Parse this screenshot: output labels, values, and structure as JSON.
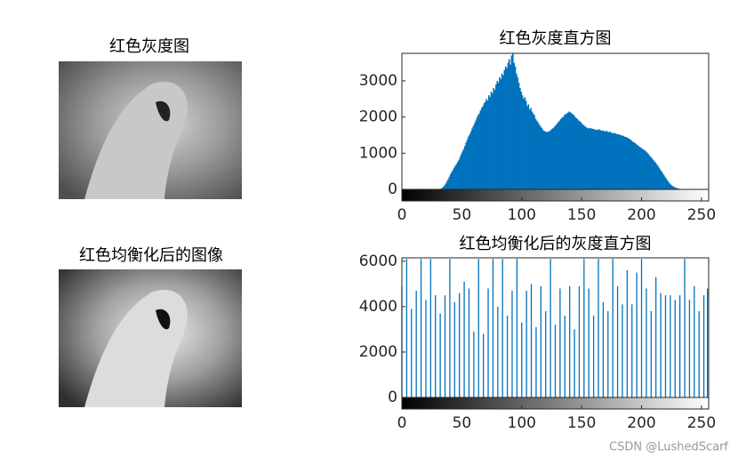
{
  "images": [
    {
      "title": "红色灰度图"
    },
    {
      "title": "红色均衡化后的图像"
    }
  ],
  "chart_data": [
    {
      "type": "histogram",
      "title": "红色灰度直方图",
      "color": "#0072bd",
      "xlim": [
        0,
        256
      ],
      "xticks": [
        0,
        50,
        100,
        150,
        200,
        250
      ],
      "ylim": [
        0,
        3760
      ],
      "yticks": [
        0,
        1000,
        2000,
        3000
      ],
      "x": [
        0,
        1,
        2,
        3,
        4,
        5,
        6,
        7,
        8,
        9,
        10,
        11,
        12,
        13,
        14,
        15,
        16,
        17,
        18,
        19,
        20,
        21,
        22,
        23,
        24,
        25,
        26,
        27,
        28,
        29,
        30,
        31,
        32,
        33,
        34,
        35,
        36,
        37,
        38,
        39,
        40,
        41,
        42,
        43,
        44,
        45,
        46,
        47,
        48,
        49,
        50,
        51,
        52,
        53,
        54,
        55,
        56,
        57,
        58,
        59,
        60,
        61,
        62,
        63,
        64,
        65,
        66,
        67,
        68,
        69,
        70,
        71,
        72,
        73,
        74,
        75,
        76,
        77,
        78,
        79,
        80,
        81,
        82,
        83,
        84,
        85,
        86,
        87,
        88,
        89,
        90,
        91,
        92,
        93,
        94,
        95,
        96,
        97,
        98,
        99,
        100,
        101,
        102,
        103,
        104,
        105,
        106,
        107,
        108,
        109,
        110,
        111,
        112,
        113,
        114,
        115,
        116,
        117,
        118,
        119,
        120,
        121,
        122,
        123,
        124,
        125,
        126,
        127,
        128,
        129,
        130,
        131,
        132,
        133,
        134,
        135,
        136,
        137,
        138,
        139,
        140,
        141,
        142,
        143,
        144,
        145,
        146,
        147,
        148,
        149,
        150,
        151,
        152,
        153,
        154,
        155,
        156,
        157,
        158,
        159,
        160,
        161,
        162,
        163,
        164,
        165,
        166,
        167,
        168,
        169,
        170,
        171,
        172,
        173,
        174,
        175,
        176,
        177,
        178,
        179,
        180,
        181,
        182,
        183,
        184,
        185,
        186,
        187,
        188,
        189,
        190,
        191,
        192,
        193,
        194,
        195,
        196,
        197,
        198,
        199,
        200,
        201,
        202,
        203,
        204,
        205,
        206,
        207,
        208,
        209,
        210,
        211,
        212,
        213,
        214,
        215,
        216,
        217,
        218,
        219,
        220,
        221,
        222,
        223,
        224,
        225,
        226,
        227,
        228,
        229,
        230,
        231,
        232,
        233,
        234,
        235,
        236,
        237,
        238,
        239,
        240,
        241,
        242,
        243,
        244,
        245,
        246,
        247,
        248,
        249,
        250,
        251,
        252,
        253,
        254,
        255
      ],
      "values": [
        0,
        0,
        0,
        0,
        0,
        0,
        0,
        0,
        0,
        0,
        0,
        0,
        0,
        0,
        0,
        0,
        0,
        0,
        0,
        0,
        0,
        0,
        0,
        0,
        0,
        0,
        0,
        0,
        0,
        0,
        5,
        10,
        20,
        40,
        70,
        110,
        160,
        220,
        280,
        350,
        420,
        480,
        540,
        600,
        650,
        700,
        760,
        820,
        900,
        980,
        1050,
        1120,
        1200,
        1300,
        1380,
        1460,
        1520,
        1600,
        1680,
        1750,
        1820,
        1900,
        1980,
        2050,
        2100,
        2180,
        2250,
        2300,
        2380,
        2420,
        2500,
        2450,
        2600,
        2550,
        2700,
        2650,
        2800,
        2750,
        2900,
        3000,
        2950,
        3100,
        3050,
        3200,
        3150,
        3300,
        3400,
        3350,
        3500,
        3600,
        3450,
        3700,
        3760,
        3500,
        3400,
        3200,
        3100,
        2950,
        2800,
        2700,
        2600,
        2500,
        2550,
        2450,
        2300,
        2350,
        2200,
        2250,
        2150,
        2100,
        2050,
        1950,
        1900,
        1850,
        1800,
        1750,
        1700,
        1650,
        1620,
        1600,
        1580,
        1600,
        1590,
        1620,
        1650,
        1680,
        1700,
        1740,
        1780,
        1820,
        1860,
        1900,
        1940,
        1980,
        2000,
        2050,
        2080,
        2100,
        2120,
        2150,
        2130,
        2100,
        2080,
        2050,
        2000,
        1970,
        1940,
        1900,
        1880,
        1850,
        1800,
        1780,
        1750,
        1720,
        1700,
        1680,
        1700,
        1690,
        1680,
        1670,
        1660,
        1650,
        1640,
        1650,
        1660,
        1640,
        1620,
        1630,
        1610,
        1600,
        1620,
        1590,
        1580,
        1600,
        1570,
        1560,
        1550,
        1560,
        1540,
        1520,
        1530,
        1510,
        1500,
        1490,
        1480,
        1460,
        1450,
        1440,
        1420,
        1400,
        1380,
        1350,
        1320,
        1300,
        1280,
        1250,
        1220,
        1200,
        1170,
        1150,
        1120,
        1100,
        1080,
        1050,
        1020,
        980,
        940,
        900,
        860,
        820,
        780,
        740,
        700,
        650,
        600,
        550,
        500,
        450,
        400,
        350,
        300,
        250,
        200,
        160,
        130,
        100,
        80,
        60,
        45,
        35,
        25,
        18,
        12,
        8,
        5,
        3,
        2,
        1,
        0,
        0,
        0,
        0,
        0,
        0,
        0,
        0,
        0,
        0,
        0,
        0,
        0,
        0,
        0,
        0,
        0,
        0
      ]
    },
    {
      "type": "stem",
      "title": "红色均衡化后的灰度直方图",
      "color": "#0072bd",
      "xlim": [
        0,
        256
      ],
      "xticks": [
        0,
        50,
        100,
        150,
        200,
        250
      ],
      "ylim": [
        0,
        6150
      ],
      "yticks": [
        0,
        2000,
        4000,
        6000
      ],
      "x": [
        0,
        4,
        8,
        12,
        16,
        20,
        24,
        28,
        32,
        36,
        40,
        44,
        48,
        52,
        56,
        60,
        64,
        68,
        72,
        76,
        80,
        84,
        88,
        92,
        96,
        100,
        104,
        108,
        112,
        116,
        120,
        124,
        128,
        132,
        136,
        140,
        144,
        148,
        152,
        156,
        160,
        164,
        168,
        172,
        176,
        180,
        184,
        188,
        192,
        196,
        200,
        204,
        208,
        212,
        216,
        220,
        224,
        228,
        232,
        236,
        240,
        244,
        248,
        252,
        255
      ],
      "values": [
        4900,
        6100,
        3900,
        4700,
        6100,
        4300,
        6100,
        4500,
        3700,
        4500,
        6100,
        4200,
        4600,
        5100,
        4800,
        2900,
        6100,
        2800,
        4800,
        6100,
        4000,
        6100,
        3600,
        4700,
        6100,
        3300,
        4700,
        5000,
        3100,
        4900,
        3800,
        6100,
        3200,
        4800,
        3600,
        4900,
        3000,
        4900,
        6100,
        4800,
        3600,
        6100,
        4200,
        3800,
        6100,
        4900,
        4100,
        5600,
        4100,
        5500,
        6100,
        4800,
        3800,
        5300,
        4600,
        4500,
        4500,
        4300,
        4500,
        6100,
        4300,
        4900,
        3800,
        4500,
        4800
      ]
    }
  ],
  "watermark": "CSDN @LushedScarf"
}
